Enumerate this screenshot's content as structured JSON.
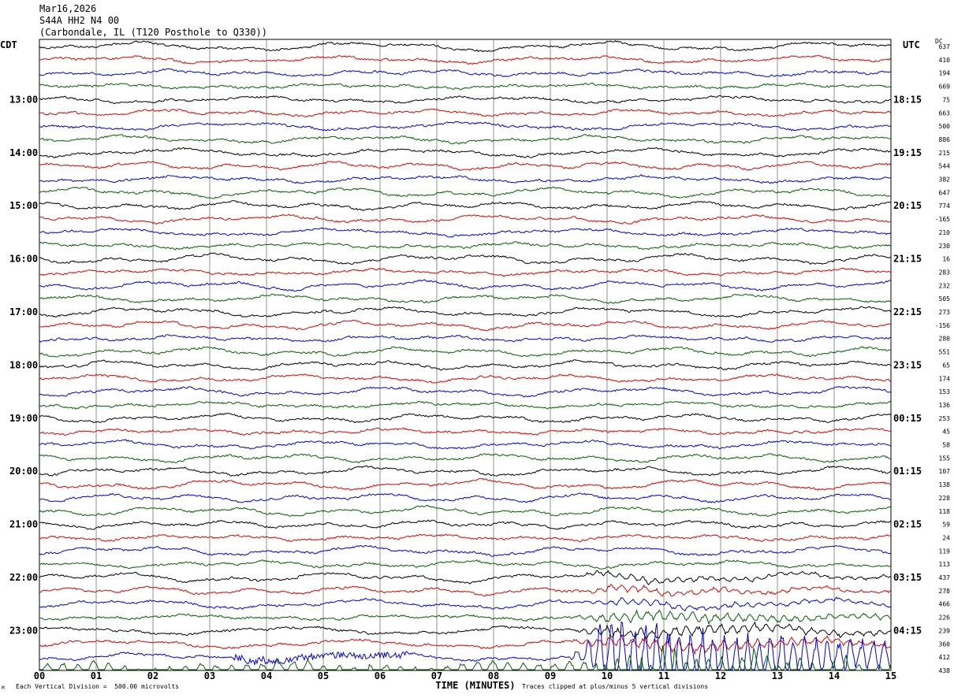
{
  "header": {
    "date": "Mar16,2026",
    "station": "S44A HH2 N4 00",
    "location": "(Carbondale, IL (T120 Posthole to Q330))"
  },
  "left_zone": "CDT",
  "right_zone": "UTC",
  "dc_label": "DC",
  "footer": {
    "scale_note": "Each Vertical Division =  500.00 microvolts",
    "clip_note": "Traces clipped at plus/minus 5 vertical divisions",
    "corner_mark": "M"
  },
  "chart_data": {
    "type": "line",
    "xlabel": "TIME (MINUTES)",
    "x_ticks": [
      "00",
      "01",
      "02",
      "03",
      "04",
      "05",
      "06",
      "07",
      "08",
      "09",
      "10",
      "11",
      "12",
      "13",
      "14",
      "15"
    ],
    "x_range": [
      0,
      15
    ],
    "trace_count": 48,
    "trace_colors": [
      "#000000",
      "#e00000",
      "#0000e0",
      "#006000"
    ],
    "left_hour_labels": [
      "13:00",
      "14:00",
      "15:00",
      "16:00",
      "17:00",
      "18:00",
      "19:00",
      "20:00",
      "21:00",
      "22:00",
      "23:00"
    ],
    "right_hour_labels": [
      "18:15",
      "19:15",
      "20:15",
      "21:15",
      "22:15",
      "23:15",
      "00:15",
      "01:15",
      "02:15",
      "03:15",
      "04:15"
    ],
    "dc_offsets": [
      "637",
      "410",
      "194",
      "669",
      "75",
      "663",
      "500",
      "886",
      "215",
      "544",
      "382",
      "647",
      "774",
      "-165",
      "210",
      "230",
      "16",
      "283",
      "232",
      "505",
      "273",
      "-156",
      "280",
      "551",
      "65",
      "174",
      "153",
      "136",
      "253",
      "45",
      "58",
      "155",
      "107",
      "138",
      "228",
      "118",
      "59",
      "24",
      "119",
      "113",
      "437",
      "278",
      "466",
      "226",
      "239",
      "360",
      "412",
      "438"
    ],
    "grid": "vertical-minutes",
    "event": {
      "start_minute": 9.3,
      "description_visible": false
    }
  }
}
